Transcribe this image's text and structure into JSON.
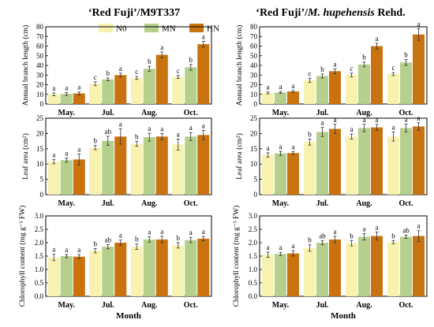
{
  "figure": {
    "titles": [
      "‘Red Fuji’/M9T337",
      "‘Red Fuji’/M. hupehensis Rehd."
    ],
    "title_parts": [
      [
        {
          "t": "‘Red Fuji’/M9T337",
          "i": false
        }
      ],
      [
        {
          "t": "‘Red Fuji’/",
          "i": false
        },
        {
          "t": "M. hupehensis",
          "i": true
        },
        {
          "t": " Rehd.",
          "i": false
        }
      ]
    ],
    "x_axis_label": "Month",
    "legend": [
      {
        "name": "N0",
        "color": "#f7f2b0"
      },
      {
        "name": "MN",
        "color": "#b5cf8c"
      },
      {
        "name": "HN",
        "color": "#c8730f"
      }
    ]
  },
  "chart_data": [
    {
      "id": "branch-m9t337",
      "type": "bar",
      "title": "‘Red Fuji’/M9T337",
      "ylabel": "Annual branch length (cm)",
      "ylim": [
        0,
        80
      ],
      "yticks": [
        0,
        10,
        20,
        30,
        40,
        50,
        60,
        70,
        80
      ],
      "categories": [
        "May.",
        "Jul.",
        "Aug.",
        "Oct."
      ],
      "series": [
        {
          "name": "N0",
          "values": [
            10,
            21,
            27,
            28
          ],
          "errors": [
            1.5,
            2,
            1.5,
            1.5
          ],
          "letters": [
            "a",
            "c",
            "c",
            "c"
          ]
        },
        {
          "name": "MN",
          "values": [
            10.5,
            25.5,
            36.5,
            38
          ],
          "errors": [
            1.5,
            1.5,
            2.5,
            3
          ],
          "letters": [
            "a",
            "b",
            "b",
            "b"
          ]
        },
        {
          "name": "HN",
          "values": [
            11,
            30,
            51,
            62
          ],
          "errors": [
            1.5,
            2,
            3,
            3
          ],
          "letters": [
            "a",
            "a",
            "a",
            "a"
          ]
        }
      ]
    },
    {
      "id": "branch-hupehensis",
      "type": "bar",
      "title": "‘Red Fuji’/M. hupehensis Rehd.",
      "ylabel": "Annual branch length (cm)",
      "ylim": [
        0,
        80
      ],
      "yticks": [
        0,
        10,
        20,
        30,
        40,
        50,
        60,
        70,
        80
      ],
      "categories": [
        "May.",
        "Jul.",
        "Aug.",
        "Oct."
      ],
      "series": [
        {
          "name": "N0",
          "values": [
            11.5,
            24.5,
            30,
            31
          ],
          "errors": [
            1,
            2,
            2,
            1.5
          ],
          "letters": [
            "a",
            "c",
            "c",
            "c"
          ]
        },
        {
          "name": "MN",
          "values": [
            12,
            29,
            41,
            43
          ],
          "errors": [
            1,
            2,
            2.5,
            3
          ],
          "letters": [
            "a",
            "b",
            "b",
            "b"
          ]
        },
        {
          "name": "HN",
          "values": [
            13,
            34,
            60,
            72
          ],
          "errors": [
            1,
            2.5,
            3,
            6
          ],
          "letters": [
            "a",
            "a",
            "a",
            "a"
          ]
        }
      ]
    },
    {
      "id": "leaf-m9t337",
      "type": "bar",
      "ylabel": "Leaf area (cm²)",
      "ylim": [
        0,
        25
      ],
      "yticks": [
        0,
        5,
        10,
        15,
        20,
        25
      ],
      "categories": [
        "May.",
        "Jul.",
        "Aug.",
        "Oct."
      ],
      "series": [
        {
          "name": "N0",
          "values": [
            10.8,
            15.4,
            16.6,
            16.4
          ],
          "errors": [
            0.7,
            0.7,
            0.8,
            1.8
          ],
          "letters": [
            "a",
            "b",
            "b",
            "a"
          ]
        },
        {
          "name": "MN",
          "values": [
            11.3,
            17.6,
            18.8,
            19
          ],
          "errors": [
            0.7,
            1.5,
            1.3,
            1.3
          ],
          "letters": [
            "a",
            "ab",
            "a",
            "a"
          ]
        },
        {
          "name": "HN",
          "values": [
            11.5,
            19,
            19,
            19.5
          ],
          "errors": [
            1.8,
            2.5,
            1,
            1.5
          ],
          "letters": [
            "a",
            "a",
            "a",
            "a"
          ]
        }
      ]
    },
    {
      "id": "leaf-hupehensis",
      "type": "bar",
      "ylabel": "Leaf area (cm²)",
      "ylim": [
        0,
        25
      ],
      "yticks": [
        0,
        5,
        10,
        15,
        20,
        25
      ],
      "categories": [
        "May.",
        "Jul.",
        "Aug.",
        "Oct."
      ],
      "series": [
        {
          "name": "N0",
          "values": [
            13,
            17.2,
            19,
            19
          ],
          "errors": [
            0.7,
            1,
            0.8,
            1.5
          ],
          "letters": [
            "a",
            "b",
            "a",
            "a"
          ]
        },
        {
          "name": "MN",
          "values": [
            13.5,
            20.5,
            21.8,
            21.8
          ],
          "errors": [
            0.7,
            1.5,
            1.2,
            1.3
          ],
          "letters": [
            "a",
            "a",
            "a",
            "a"
          ]
        },
        {
          "name": "HN",
          "values": [
            13.6,
            21.5,
            22,
            22.3
          ],
          "errors": [
            0.5,
            1.5,
            1,
            1.2
          ],
          "letters": [
            "a",
            "a",
            "a",
            "a"
          ]
        }
      ]
    },
    {
      "id": "chl-m9t337",
      "type": "bar",
      "ylabel": "Chlorophyll content (mg g⁻¹ FW)",
      "ylim": [
        0,
        3.0
      ],
      "yticks": [
        0,
        0.5,
        1.0,
        1.5,
        2.0,
        2.5,
        3.0
      ],
      "ytick_labels": [
        "0.0",
        "0.5",
        "1.0",
        "1.5",
        "2.0",
        "2.5",
        "3.0"
      ],
      "categories": [
        "May.",
        "Jul.",
        "Aug.",
        "Oct."
      ],
      "series": [
        {
          "name": "N0",
          "values": [
            1.45,
            1.7,
            1.85,
            1.9
          ],
          "errors": [
            0.12,
            0.08,
            0.1,
            0.1
          ],
          "letters": [
            "a",
            "b",
            "b",
            "b"
          ]
        },
        {
          "name": "MN",
          "values": [
            1.5,
            1.85,
            2.12,
            2.1
          ],
          "errors": [
            0.06,
            0.08,
            0.1,
            0.1
          ],
          "letters": [
            "a",
            "ab",
            "a",
            "a"
          ]
        },
        {
          "name": "HN",
          "values": [
            1.48,
            2.0,
            2.12,
            2.15
          ],
          "errors": [
            0.08,
            0.1,
            0.12,
            0.08
          ],
          "letters": [
            "a",
            "a",
            "a",
            "a"
          ]
        }
      ]
    },
    {
      "id": "chl-hupehensis",
      "type": "bar",
      "ylabel": "Chlorophyll content (mg g⁻¹ FW)",
      "ylim": [
        0,
        3.0
      ],
      "yticks": [
        0,
        0.5,
        1.0,
        1.5,
        2.0,
        2.5,
        3.0
      ],
      "ytick_labels": [
        "0.0",
        "0.5",
        "1.0",
        "1.5",
        "2.0",
        "2.5",
        "3.0"
      ],
      "categories": [
        "May.",
        "Jul.",
        "Aug.",
        "Oct."
      ],
      "series": [
        {
          "name": "N0",
          "values": [
            1.55,
            1.8,
            1.98,
            2.02
          ],
          "errors": [
            0.1,
            0.12,
            0.1,
            0.06
          ],
          "letters": [
            "a",
            "b",
            "b",
            "b"
          ]
        },
        {
          "name": "MN",
          "values": [
            1.58,
            2.0,
            2.22,
            2.22
          ],
          "errors": [
            0.06,
            0.08,
            0.12,
            0.06
          ],
          "letters": [
            "a",
            "ab",
            "a",
            "ab"
          ]
        },
        {
          "name": "HN",
          "values": [
            1.6,
            2.12,
            2.25,
            2.25
          ],
          "errors": [
            0.1,
            0.12,
            0.15,
            0.2
          ],
          "letters": [
            "a",
            "a",
            "a",
            "a"
          ]
        }
      ]
    }
  ]
}
